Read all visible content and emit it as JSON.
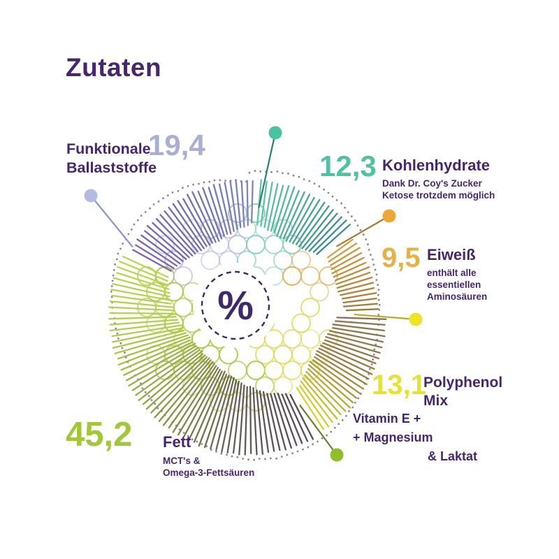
{
  "page": {
    "background": "#ffffff",
    "text_color": "#46276b"
  },
  "chart_data": {
    "type": "radial-tick-donut",
    "title": "Zutaten",
    "center_label": "%",
    "unit": "%",
    "legend_position": "callouts-around-chart",
    "grid": false,
    "segments": [
      {
        "name": "Funktionale Ballaststoffe",
        "value": 19.4,
        "value_label": "19,4",
        "note": "",
        "number_color": "#a9aed3",
        "dot_color": "#b4bbe3",
        "line_color": "#8d94c9",
        "tick_colors": [
          "#8064ab",
          "#6f6fa2",
          "#8087b8"
        ],
        "circle_color": "#b7bcdf",
        "start_angle": 299,
        "end_angle": 363
      },
      {
        "name": "Kohlenhydrate",
        "value": 12.3,
        "value_label": "12,3",
        "note": "Dank Dr. Coy's Zucker Ketose trotzdem möglich",
        "number_color": "#52c1a3",
        "dot_color": "#4cc3a0",
        "line_color": "#2f7d72",
        "tick_colors": [
          "#5ec6a8",
          "#3a8a8c"
        ],
        "circle_color": "#8fd0bd",
        "start_angle": 5,
        "end_angle": 50
      },
      {
        "name": "Eiweiß",
        "value": 9.5,
        "value_label": "9,5",
        "note": "enthält alle essentiellen Aminosäuren",
        "number_color": "#e2b34a",
        "dot_color": "#eda63a",
        "line_color": "#a87b2c",
        "tick_colors": [
          "#cf9f40",
          "#9c7a3a"
        ],
        "circle_color": "#e0b45c",
        "start_angle": 54,
        "end_angle": 88
      },
      {
        "name": "Polyphenol Mix",
        "value": 13.1,
        "value_label": "13,1",
        "note": "Vitamin E + + Magnesium & Laktat",
        "number_color": "#e6e235",
        "dot_color": "#efe32a",
        "line_color": "#b6ac25",
        "tick_colors": [
          "#8a7355",
          "#97803f",
          "#d6d32f"
        ],
        "circle_color": "#ded964",
        "start_angle": 92,
        "end_angle": 149
      },
      {
        "name": "Fett",
        "value": 45.2,
        "value_label": "45,2",
        "note": "MCT's & Omega-3-Fettsäuren",
        "number_color": "#a3c73a",
        "dot_color": "#8fbe2d",
        "line_color": "#6c7c33",
        "tick_colors": [
          "#544a58",
          "#675c52",
          "#8f9a45",
          "#b2cc49",
          "#bdd454"
        ],
        "circle_color": "#abc94f",
        "start_angle": 153,
        "end_angle": 295
      }
    ]
  },
  "callouts": {
    "funktionale": {
      "line1": "Funktionale",
      "line2": "Ballaststoffe"
    },
    "kohlenhydrate": {
      "title": "Kohlenhydrate",
      "sub1": "Dank Dr. Coy's Zucker",
      "sub2": "Ketose trotzdem möglich"
    },
    "eiweiss": {
      "title": "Eiweiß",
      "sub1": "enthält alle",
      "sub2": "essentiellen",
      "sub3": "Aminosäuren"
    },
    "polyphenol": {
      "title1": "Polyphenol",
      "title2": "Mix",
      "extra1": "Vitamin E +",
      "extra2": "+ Magnesium",
      "extra3": "& Laktat"
    },
    "fett": {
      "title": "Fett",
      "sub1": "MCT's &",
      "sub2": "Omega-3-Fettsäuren"
    }
  }
}
